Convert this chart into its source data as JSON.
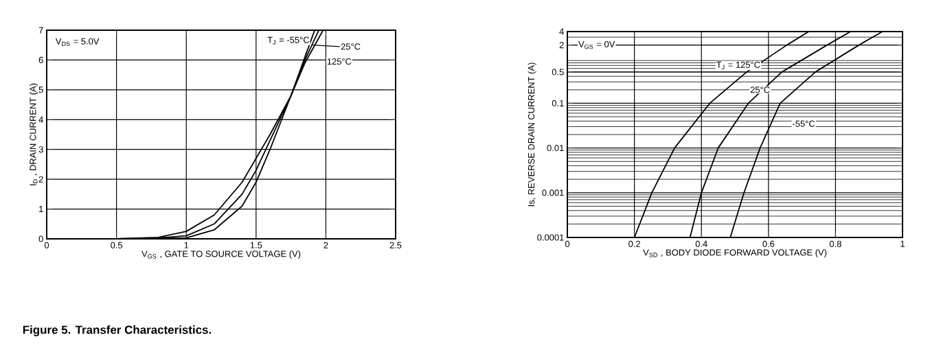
{
  "chart_data": [
    {
      "type": "line",
      "xlabel": "V$_{GS}$ , GATE TO SOURCE VOLTAGE (V)",
      "ylabel": "I$_{D}$ , DRAIN CURRENT (A)",
      "annotations": [
        "V$_{DS}$ = 5.0V",
        "Figure   5. Transfer Characteristics."
      ],
      "xlim": [
        0,
        2.5
      ],
      "ylim": [
        0,
        7
      ],
      "xticks": [
        0,
        0.5,
        1,
        1.5,
        2,
        2.5
      ],
      "yticks": [
        0,
        1,
        2,
        3,
        4,
        5,
        6,
        7
      ],
      "grid": true,
      "marker": "none",
      "line_style": "solid",
      "series": [
        {
          "name": "T$_{J}$ = -55°C",
          "color": "#000000",
          "x": [
            0.5,
            0.8,
            1.0,
            1.2,
            1.4,
            1.5,
            1.6,
            1.75,
            1.85,
            1.92
          ],
          "values": [
            0,
            0.01,
            0.03,
            0.3,
            1.1,
            1.9,
            3.0,
            4.8,
            6.1,
            7
          ]
        },
        {
          "name": "25°C",
          "color": "#000000",
          "x": [
            0.5,
            0.8,
            1.0,
            1.2,
            1.4,
            1.5,
            1.6,
            1.75,
            1.85,
            1.95
          ],
          "values": [
            0,
            0.03,
            0.1,
            0.5,
            1.5,
            2.3,
            3.3,
            4.8,
            6.0,
            7
          ]
        },
        {
          "name": "125°C",
          "color": "#000000",
          "x": [
            0.5,
            0.8,
            1.0,
            1.2,
            1.4,
            1.5,
            1.6,
            1.75,
            1.85,
            1.98
          ],
          "values": [
            0,
            0.05,
            0.25,
            0.8,
            1.9,
            2.7,
            3.5,
            4.8,
            5.9,
            7
          ]
        }
      ]
    },
    {
      "type": "line",
      "xlabel": "V$_{SD}$ , BODY DIODE FORWARD VOLTAGE (V)",
      "ylabel": "Is, REVERSE DRAIN CURRENT (A)",
      "annotations": [
        "V$_{GS}$ = 0V"
      ],
      "xlim": [
        0,
        1
      ],
      "ylim": [
        0.0001,
        4
      ],
      "xticks": [
        0,
        0.2,
        0.4,
        0.6,
        0.8,
        1
      ],
      "yticks": [
        0.0001,
        0.001,
        0.01,
        0.1,
        0.5,
        2,
        4
      ],
      "grid": true,
      "log": "y",
      "marker": "none",
      "line_style": "solid",
      "series": [
        {
          "name": "T$_{J}$ = 125°C",
          "color": "#000000",
          "x": [
            0.2,
            0.252,
            0.32,
            0.425,
            0.535,
            0.655,
            0.72
          ],
          "values": [
            0.0001,
            0.001,
            0.01,
            0.1,
            0.5,
            2,
            4
          ]
        },
        {
          "name": "25°C",
          "color": "#000000",
          "x": [
            0.366,
            0.4,
            0.45,
            0.54,
            0.64,
            0.775,
            0.845
          ],
          "values": [
            0.0001,
            0.001,
            0.01,
            0.1,
            0.5,
            2,
            4
          ]
        },
        {
          "name": "-55°C",
          "color": "#000000",
          "x": [
            0.486,
            0.527,
            0.575,
            0.635,
            0.74,
            0.87,
            0.94
          ],
          "values": [
            0.0001,
            0.001,
            0.01,
            0.1,
            0.5,
            2,
            4
          ]
        }
      ]
    }
  ]
}
